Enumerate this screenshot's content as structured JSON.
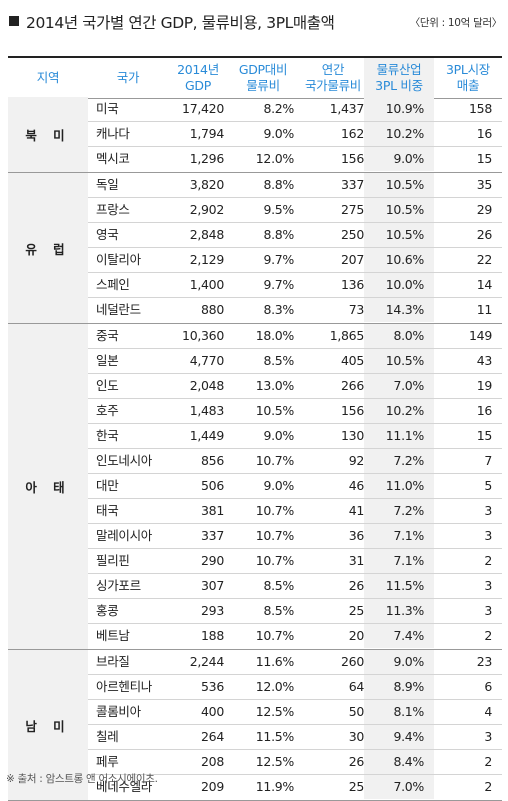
{
  "title": "2014년 국가별 연간 GDP, 물류비용, 3PL매출액",
  "unit": "〈단위 : 10억 달러〉",
  "headers": {
    "region": "지역",
    "country": "국가",
    "gdp": [
      "2014년",
      "GDP"
    ],
    "ratio": [
      "GDP대비",
      "물류비"
    ],
    "cost": [
      "연간",
      "국가물류비"
    ],
    "share": [
      "물류산업",
      "3PL 비중"
    ],
    "market": [
      "3PL시장",
      "매출"
    ]
  },
  "groups": [
    {
      "region": "북 미",
      "rows": [
        [
          "미국",
          "17,420",
          "8.2%",
          "1,437",
          "10.9%",
          "158"
        ],
        [
          "캐나다",
          "1,794",
          "9.0%",
          "162",
          "10.2%",
          "16"
        ],
        [
          "멕시코",
          "1,296",
          "12.0%",
          "156",
          "9.0%",
          "15"
        ]
      ]
    },
    {
      "region": "유 럽",
      "rows": [
        [
          "독일",
          "3,820",
          "8.8%",
          "337",
          "10.5%",
          "35"
        ],
        [
          "프랑스",
          "2,902",
          "9.5%",
          "275",
          "10.5%",
          "29"
        ],
        [
          "영국",
          "2,848",
          "8.8%",
          "250",
          "10.5%",
          "26"
        ],
        [
          "이탈리아",
          "2,129",
          "9.7%",
          "207",
          "10.6%",
          "22"
        ],
        [
          "스페인",
          "1,400",
          "9.7%",
          "136",
          "10.0%",
          "14"
        ],
        [
          "네덜란드",
          "880",
          "8.3%",
          "73",
          "14.3%",
          "11"
        ]
      ]
    },
    {
      "region": "아 태",
      "rows": [
        [
          "중국",
          "10,360",
          "18.0%",
          "1,865",
          "8.0%",
          "149"
        ],
        [
          "일본",
          "4,770",
          "8.5%",
          "405",
          "10.5%",
          "43"
        ],
        [
          "인도",
          "2,048",
          "13.0%",
          "266",
          "7.0%",
          "19"
        ],
        [
          "호주",
          "1,483",
          "10.5%",
          "156",
          "10.2%",
          "16"
        ],
        [
          "한국",
          "1,449",
          "9.0%",
          "130",
          "11.1%",
          "15"
        ],
        [
          "인도네시아",
          "856",
          "10.7%",
          "92",
          "7.2%",
          "7"
        ],
        [
          "대만",
          "506",
          "9.0%",
          "46",
          "11.0%",
          "5"
        ],
        [
          "태국",
          "381",
          "10.7%",
          "41",
          "7.2%",
          "3"
        ],
        [
          "말레이시아",
          "337",
          "10.7%",
          "36",
          "7.1%",
          "3"
        ],
        [
          "필리핀",
          "290",
          "10.7%",
          "31",
          "7.1%",
          "2"
        ],
        [
          "싱가포르",
          "307",
          "8.5%",
          "26",
          "11.5%",
          "3"
        ],
        [
          "홍콩",
          "293",
          "8.5%",
          "25",
          "11.3%",
          "3"
        ],
        [
          "베트남",
          "188",
          "10.7%",
          "20",
          "7.4%",
          "2"
        ]
      ]
    },
    {
      "region": "남 미",
      "rows": [
        [
          "브라질",
          "2,244",
          "11.6%",
          "260",
          "9.0%",
          "23"
        ],
        [
          "아르헨티나",
          "536",
          "12.0%",
          "64",
          "8.9%",
          "6"
        ],
        [
          "콜롬비아",
          "400",
          "12.5%",
          "50",
          "8.1%",
          "4"
        ],
        [
          "칠레",
          "264",
          "11.5%",
          "30",
          "9.4%",
          "3"
        ],
        [
          "페루",
          "208",
          "12.5%",
          "26",
          "8.4%",
          "2"
        ],
        [
          "베네수엘라",
          "209",
          "11.9%",
          "25",
          "7.0%",
          "2"
        ]
      ]
    }
  ],
  "footnote": "※ 출처 : 암스트롱 앤 어소시에이츠."
}
